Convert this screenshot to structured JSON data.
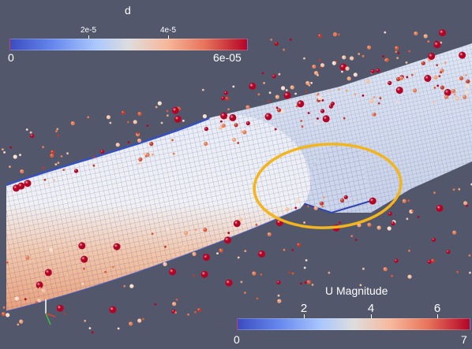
{
  "scalar_bar_d": {
    "title": "d",
    "ticks": [
      "2e-5",
      "4e-5"
    ],
    "min_label": "0",
    "max_label": "6e-05"
  },
  "scalar_bar_u": {
    "title": "U Magnitude",
    "ticks": [
      "2",
      "4",
      "6"
    ],
    "min_label": "0",
    "max_label": "7"
  },
  "colors": {
    "background": "#52576b",
    "highlight_ellipse": "#f2b51d",
    "colormap": [
      "#3b4cc0",
      "#aac7fd",
      "#dddddd",
      "#f7b89c",
      "#b40426"
    ]
  }
}
